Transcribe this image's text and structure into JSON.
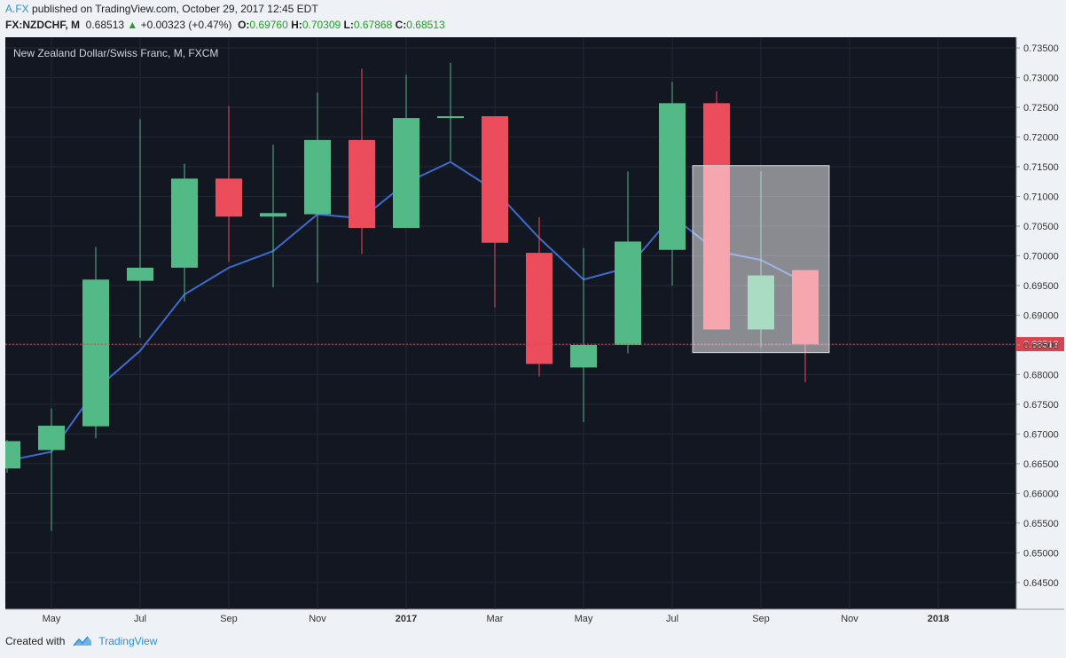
{
  "header": {
    "author": "A.FX",
    "published": "published on TradingView.com, October 29, 2017 12:45 EDT",
    "symbol": "FX:NZDCHF, M",
    "last": "0.68513",
    "arrow": "▲",
    "change": "+0.00323 (+0.47%)",
    "o_label": "O:",
    "o_value": "0.69760",
    "h_label": "H:",
    "h_value": "0.70309",
    "l_label": "L:",
    "l_value": "0.67868",
    "c_label": "C:",
    "c_value": "0.68513"
  },
  "footer": {
    "created_with": "Created with",
    "brand": "TradingView"
  },
  "colors": {
    "background": "#131722",
    "up": "#53b987",
    "down": "#eb4d5c",
    "ma": "#3d6bcc",
    "price_line": "#d9434e",
    "axis_bg": "#eef1f5",
    "highlight": "#ffffff"
  },
  "chart_data": {
    "type": "candlestick",
    "title": "New Zealand Dollar/Swiss Franc, M, FXCM",
    "ylim": [
      0.6405,
      0.7368
    ],
    "ticks": [
      "0.73500",
      "0.73000",
      "0.72500",
      "0.72000",
      "0.71500",
      "0.71000",
      "0.70500",
      "0.70000",
      "0.69500",
      "0.69000",
      "0.68500",
      "0.68000",
      "0.67500",
      "0.67000",
      "0.66500",
      "0.66000",
      "0.65500",
      "0.65000",
      "0.64500"
    ],
    "x_labels": [
      {
        "i": 1,
        "label": "May",
        "bold": false
      },
      {
        "i": 3,
        "label": "Jul",
        "bold": false
      },
      {
        "i": 5,
        "label": "Sep",
        "bold": false
      },
      {
        "i": 7,
        "label": "Nov",
        "bold": false
      },
      {
        "i": 9,
        "label": "2017",
        "bold": true
      },
      {
        "i": 11,
        "label": "Mar",
        "bold": false
      },
      {
        "i": 13,
        "label": "May",
        "bold": false
      },
      {
        "i": 15,
        "label": "Jul",
        "bold": false
      },
      {
        "i": 17,
        "label": "Sep",
        "bold": false
      },
      {
        "i": 19,
        "label": "Nov",
        "bold": false
      },
      {
        "i": 21,
        "label": "2018",
        "bold": true
      }
    ],
    "candles": [
      {
        "month": "2016-04",
        "o": 0.6642,
        "h": 0.669,
        "l": 0.6635,
        "c": 0.6688
      },
      {
        "month": "2016-05",
        "o": 0.6673,
        "h": 0.6743,
        "l": 0.6537,
        "c": 0.6714
      },
      {
        "month": "2016-06",
        "o": 0.6713,
        "h": 0.7015,
        "l": 0.6693,
        "c": 0.696
      },
      {
        "month": "2016-07",
        "o": 0.6958,
        "h": 0.723,
        "l": 0.6862,
        "c": 0.698
      },
      {
        "month": "2016-08",
        "o": 0.698,
        "h": 0.7155,
        "l": 0.6923,
        "c": 0.713
      },
      {
        "month": "2016-09",
        "o": 0.713,
        "h": 0.7252,
        "l": 0.699,
        "c": 0.7066
      },
      {
        "month": "2016-10",
        "o": 0.7066,
        "h": 0.7187,
        "l": 0.6947,
        "c": 0.7072
      },
      {
        "month": "2016-11",
        "o": 0.707,
        "h": 0.7275,
        "l": 0.6955,
        "c": 0.7195
      },
      {
        "month": "2016-12",
        "o": 0.7195,
        "h": 0.7315,
        "l": 0.7003,
        "c": 0.7047
      },
      {
        "month": "2017-01",
        "o": 0.7047,
        "h": 0.7305,
        "l": 0.7047,
        "c": 0.7232
      },
      {
        "month": "2017-02",
        "o": 0.7232,
        "h": 0.7325,
        "l": 0.716,
        "c": 0.7235
      },
      {
        "month": "2017-03",
        "o": 0.7235,
        "h": 0.7235,
        "l": 0.6913,
        "c": 0.7022
      },
      {
        "month": "2017-04",
        "o": 0.7005,
        "h": 0.7065,
        "l": 0.6797,
        "c": 0.6818
      },
      {
        "month": "2017-05",
        "o": 0.6812,
        "h": 0.7013,
        "l": 0.672,
        "c": 0.685
      },
      {
        "month": "2017-06",
        "o": 0.685,
        "h": 0.7142,
        "l": 0.6836,
        "c": 0.7024
      },
      {
        "month": "2017-07",
        "o": 0.701,
        "h": 0.7293,
        "l": 0.695,
        "c": 0.7257
      },
      {
        "month": "2017-08",
        "o": 0.7257,
        "h": 0.7277,
        "l": 0.6876,
        "c": 0.6876
      },
      {
        "month": "2017-09",
        "o": 0.6876,
        "h": 0.7142,
        "l": 0.6846,
        "c": 0.6967
      },
      {
        "month": "2017-10",
        "o": 0.6976,
        "h": 0.6976,
        "l": 0.6787,
        "c": 0.6851
      }
    ],
    "ma": [
      0.6655,
      0.667,
      0.6775,
      0.684,
      0.6935,
      0.698,
      0.7008,
      0.707,
      0.7063,
      0.7123,
      0.7158,
      0.711,
      0.703,
      0.696,
      0.698,
      0.7067,
      0.7008,
      0.6993,
      0.6955
    ],
    "last_price": 0.68513,
    "last_price_label": "0.68513",
    "highlight": {
      "from": 16,
      "to": 18,
      "top": 0.7152,
      "bottom": 0.6837
    }
  }
}
